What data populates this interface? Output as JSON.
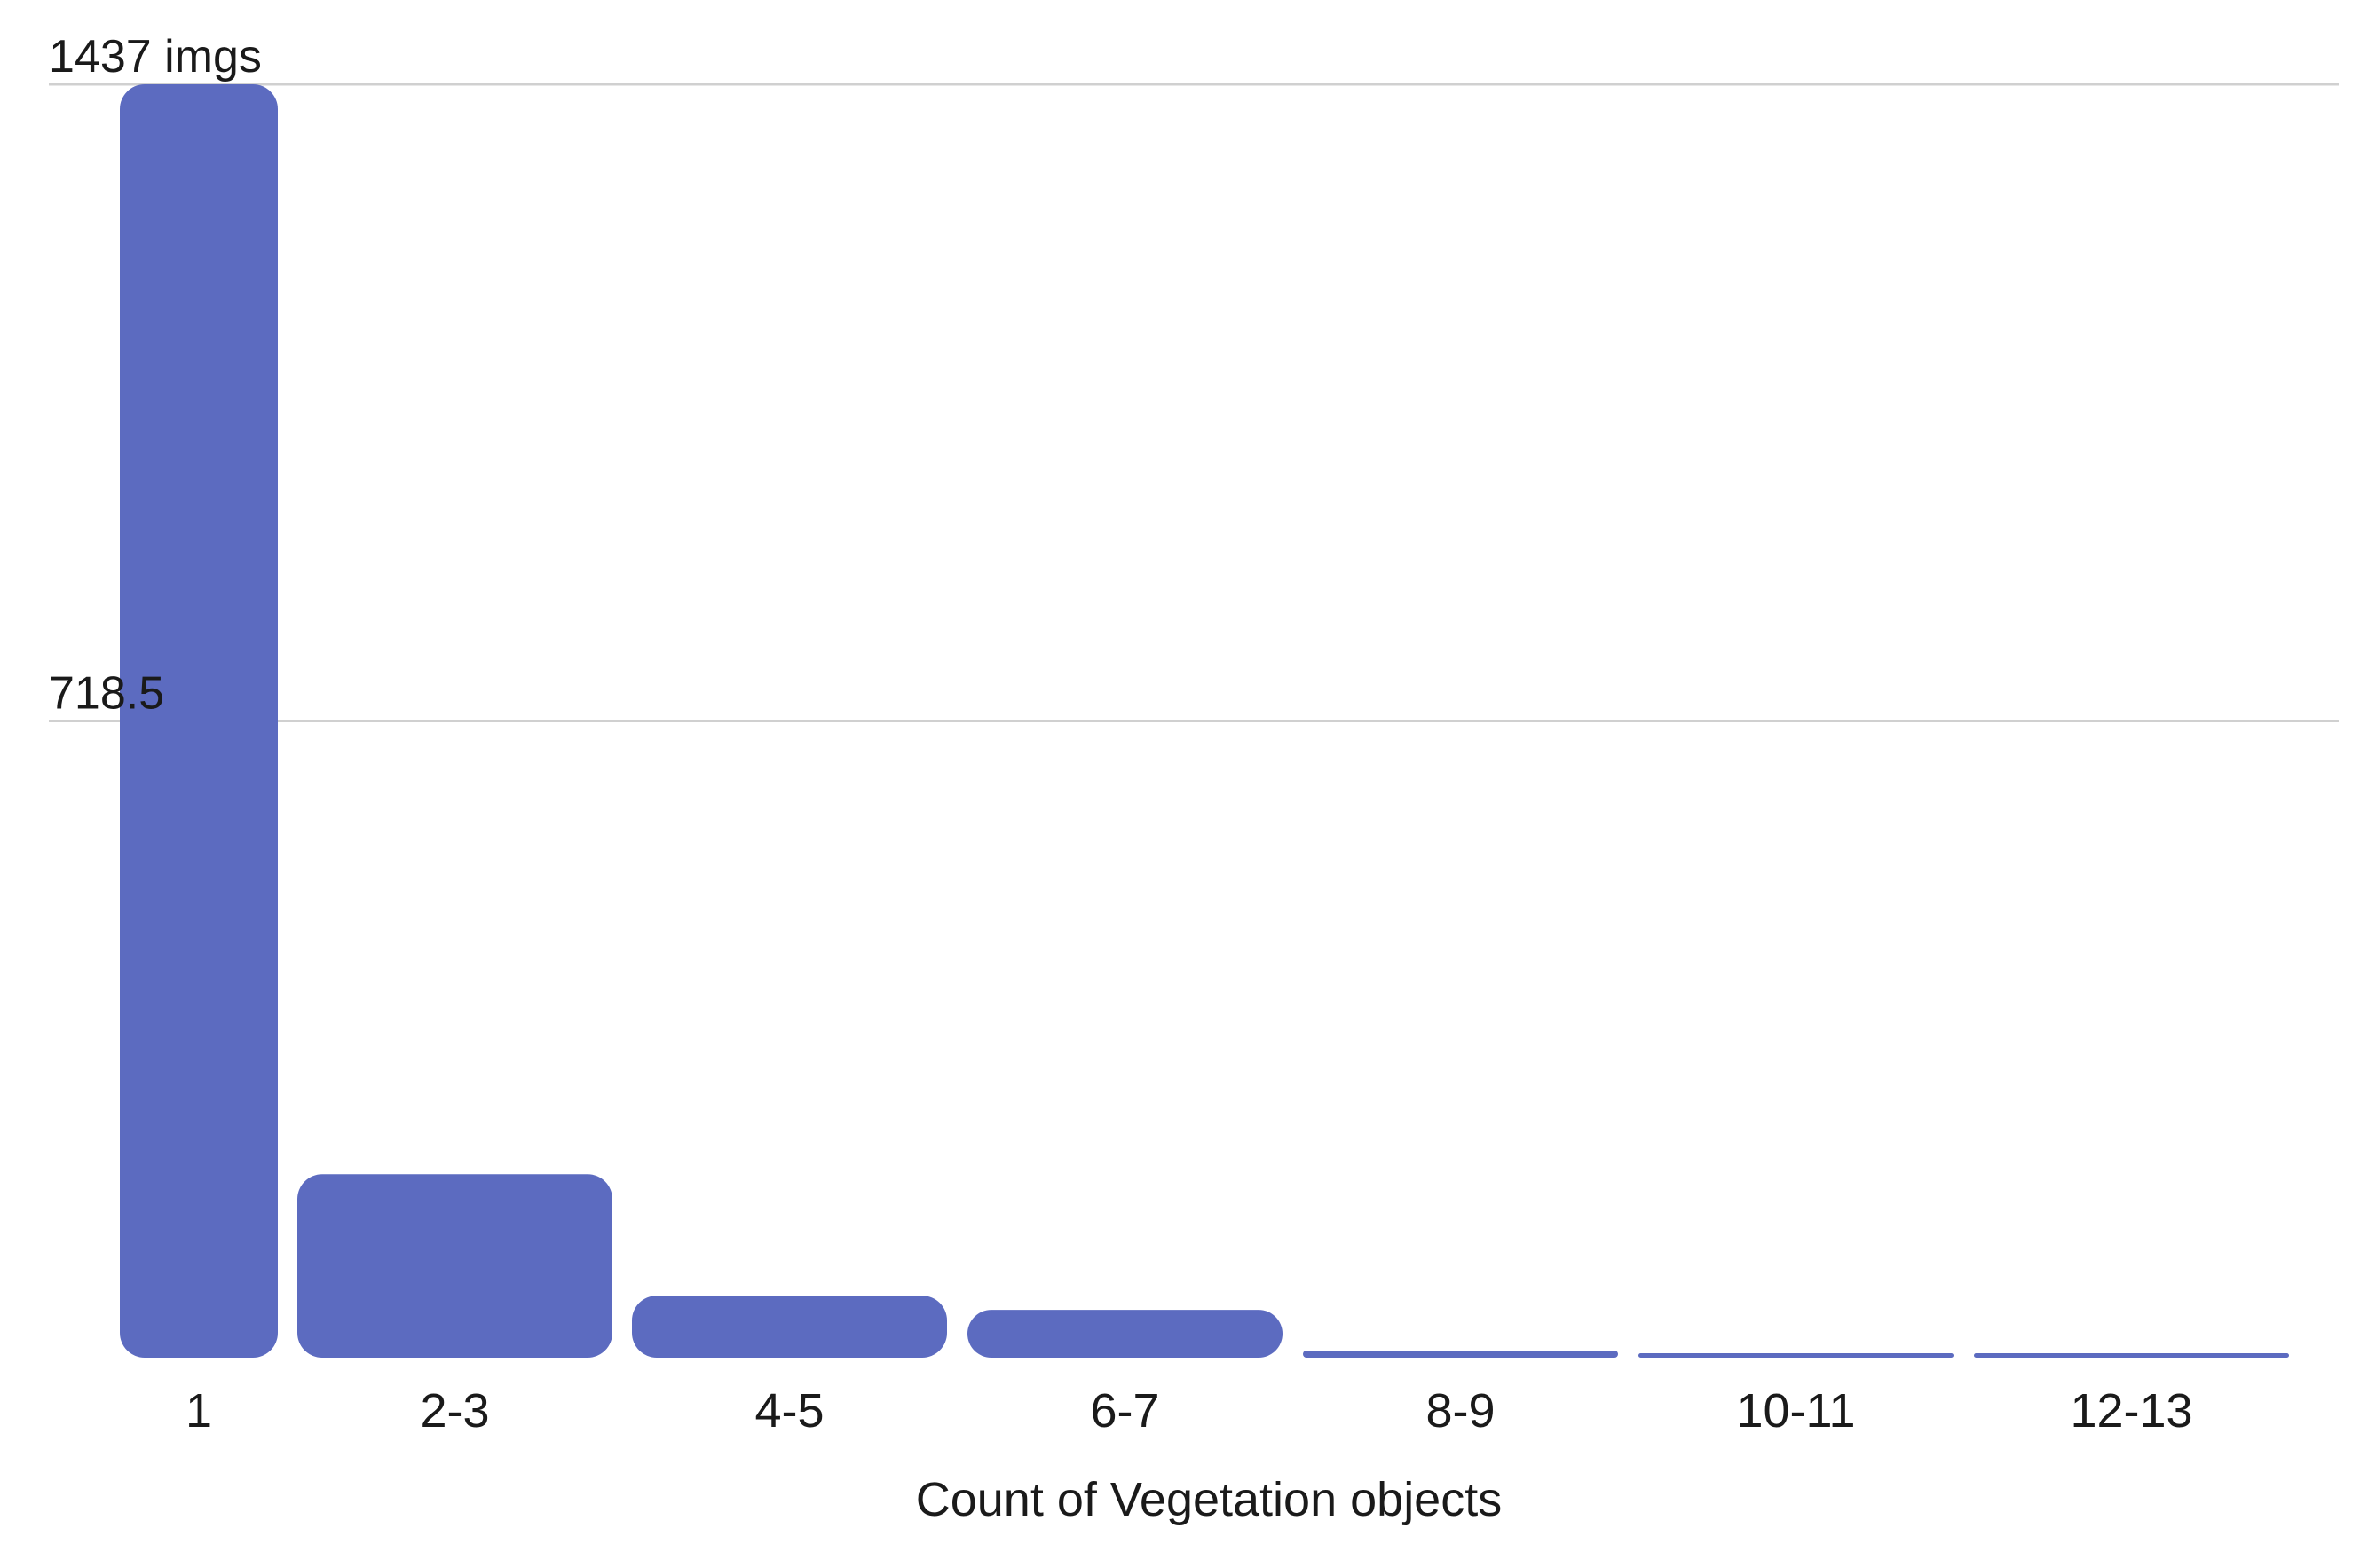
{
  "chart_data": {
    "type": "bar",
    "categories": [
      "1",
      "2-3",
      "4-5",
      "6-7",
      "8-9",
      "10-11",
      "12-13"
    ],
    "values": [
      1437,
      207,
      70,
      54,
      8,
      3,
      2
    ],
    "xlabel": "Count of Vegetation objects",
    "ylabel": "",
    "ylim": [
      0,
      1437
    ],
    "y_ticks": [
      {
        "value": 1437,
        "label": "1437 imgs"
      },
      {
        "value": 718.5,
        "label": "718.5"
      }
    ],
    "grid": true,
    "bar_color": "#5c6bc0"
  }
}
